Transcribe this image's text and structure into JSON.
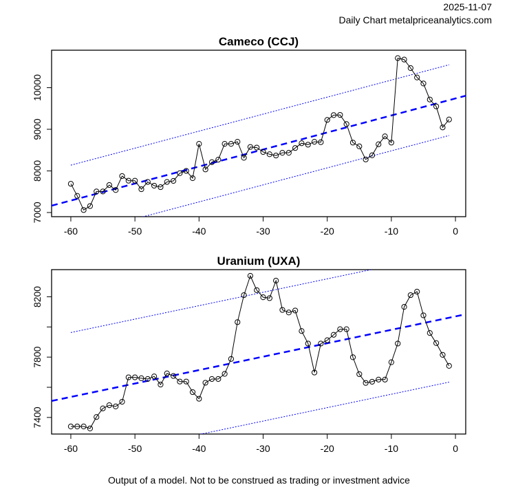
{
  "header": {
    "date": "2025-11-07",
    "source": "Daily Chart metalpriceanalytics.com"
  },
  "footer": "Output of a model. Not to be construed as trading or investment advice",
  "colors": {
    "line": "#000000",
    "trend": "#0000ff",
    "band": "#0000ff"
  },
  "chart_data": [
    {
      "type": "line",
      "title": "Cameco (CCJ)",
      "xlabel": "",
      "ylabel": "",
      "xlim": [
        -63,
        1.6
      ],
      "ylim": [
        6900,
        10900
      ],
      "xticks": [
        -60,
        -50,
        -40,
        -30,
        -20,
        -10,
        0
      ],
      "yticks": [
        7000,
        8000,
        9000,
        10000
      ],
      "x": [
        -60,
        -59,
        -58,
        -57,
        -56,
        -55,
        -54,
        -53,
        -52,
        -51,
        -50,
        -49,
        -48,
        -47,
        -46,
        -45,
        -44,
        -43,
        -42,
        -41,
        -40,
        -39,
        -38,
        -37,
        -36,
        -35,
        -34,
        -33,
        -32,
        -31,
        -30,
        -29,
        -28,
        -27,
        -26,
        -25,
        -24,
        -23,
        -22,
        -21,
        -20,
        -19,
        -18,
        -17,
        -16,
        -15,
        -14,
        -13,
        -12,
        -11,
        -10,
        -9,
        -8,
        -7,
        -6,
        -5,
        -4,
        -3,
        -2,
        -1
      ],
      "values": [
        7690,
        7400,
        7060,
        7155,
        7505,
        7505,
        7660,
        7540,
        7875,
        7765,
        7765,
        7560,
        7735,
        7645,
        7610,
        7735,
        7760,
        7945,
        8000,
        7825,
        8650,
        8035,
        8210,
        8270,
        8650,
        8650,
        8700,
        8315,
        8575,
        8560,
        8455,
        8400,
        8370,
        8435,
        8435,
        8550,
        8665,
        8630,
        8700,
        8690,
        9225,
        9340,
        9345,
        9125,
        8680,
        8590,
        8275,
        8375,
        8640,
        8830,
        8680,
        10710,
        10675,
        10470,
        10245,
        10100,
        9715,
        9550,
        9045,
        9235
      ],
      "trend": {
        "intercept": 9741,
        "slope": 40.9,
        "band": 850,
        "band_range": [
          -60,
          -1
        ]
      }
    },
    {
      "type": "line",
      "title": "Uranium (UXA)",
      "xlabel": "",
      "ylabel": "",
      "xlim": [
        -63,
        1.6
      ],
      "ylim": [
        7290,
        8380
      ],
      "xticks": [
        -60,
        -50,
        -40,
        -30,
        -20,
        -10,
        0
      ],
      "yticks": [
        7400,
        7600,
        7800,
        8000,
        8200
      ],
      "ytick_labels": [
        "7400",
        "",
        "7800",
        "",
        "8200"
      ],
      "x": [
        -60,
        -59,
        -58,
        -57,
        -56,
        -55,
        -54,
        -53,
        -52,
        -51,
        -50,
        -49,
        -48,
        -47,
        -46,
        -45,
        -44,
        -43,
        -42,
        -41,
        -40,
        -39,
        -38,
        -37,
        -36,
        -35,
        -34,
        -33,
        -32,
        -31,
        -30,
        -29,
        -28,
        -27,
        -26,
        -25,
        -24,
        -23,
        -22,
        -21,
        -20,
        -19,
        -18,
        -17,
        -16,
        -15,
        -14,
        -13,
        -12,
        -11,
        -10,
        -9,
        -8,
        -7,
        -6,
        -5,
        -4,
        -3,
        -2,
        -1
      ],
      "values": [
        7340,
        7340,
        7340,
        7327,
        7403,
        7460,
        7481,
        7473,
        7504,
        7666,
        7666,
        7660,
        7655,
        7672,
        7618,
        7692,
        7675,
        7638,
        7638,
        7568,
        7524,
        7630,
        7655,
        7655,
        7689,
        7788,
        8032,
        8211,
        8339,
        8244,
        8197,
        8191,
        8307,
        8113,
        8096,
        8109,
        7973,
        7890,
        7698,
        7890,
        7912,
        7948,
        7985,
        7985,
        7799,
        7687,
        7629,
        7637,
        7651,
        7651,
        7766,
        7890,
        8133,
        8211,
        8234,
        8077,
        7960,
        7893,
        7815,
        7742
      ],
      "trend": {
        "intercept": 8070,
        "slope": 8.9,
        "band": 427,
        "band_range": [
          -60,
          -1
        ]
      }
    }
  ]
}
